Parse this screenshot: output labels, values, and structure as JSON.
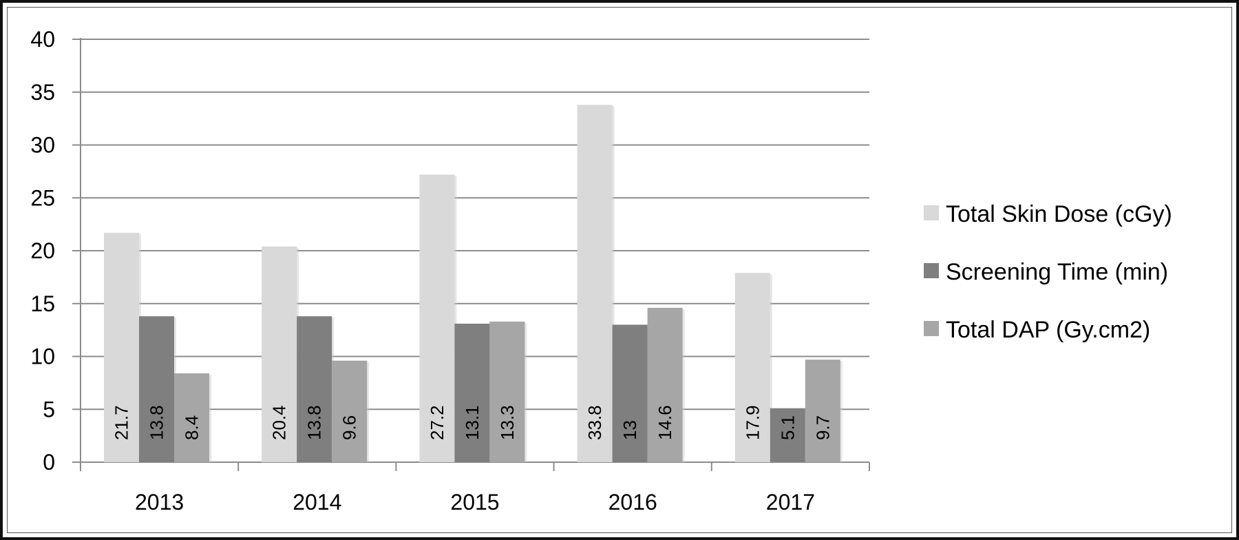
{
  "chart_data": {
    "type": "bar",
    "categories": [
      "2013",
      "2014",
      "2015",
      "2016",
      "2017"
    ],
    "series": [
      {
        "name": "Total Skin Dose (cGy)",
        "values": [
          21.7,
          20.4,
          27.2,
          33.8,
          17.9
        ],
        "labels": [
          "21.7",
          "20.4",
          "27.2",
          "33.8",
          "17.9"
        ],
        "color": "#d9d9d9"
      },
      {
        "name": "Screening Time (min)",
        "values": [
          13.8,
          13.8,
          13.1,
          13,
          5.1
        ],
        "labels": [
          "13.8",
          "13.8",
          "13.1",
          "13",
          "5.1"
        ],
        "color": "#7f7f7f"
      },
      {
        "name": "Total DAP (Gy.cm2)",
        "values": [
          8.4,
          9.6,
          13.3,
          14.6,
          9.7
        ],
        "labels": [
          "8.4",
          "9.6",
          "13.3",
          "14.6",
          "9.7"
        ],
        "color": "#a6a6a6"
      }
    ],
    "ylim": [
      0,
      40
    ],
    "yticks": [
      "0",
      "5",
      "10",
      "15",
      "20",
      "25",
      "30",
      "35",
      "40"
    ],
    "grid": true,
    "legend_position": "right",
    "data_labels": "inside-base-rotated"
  }
}
